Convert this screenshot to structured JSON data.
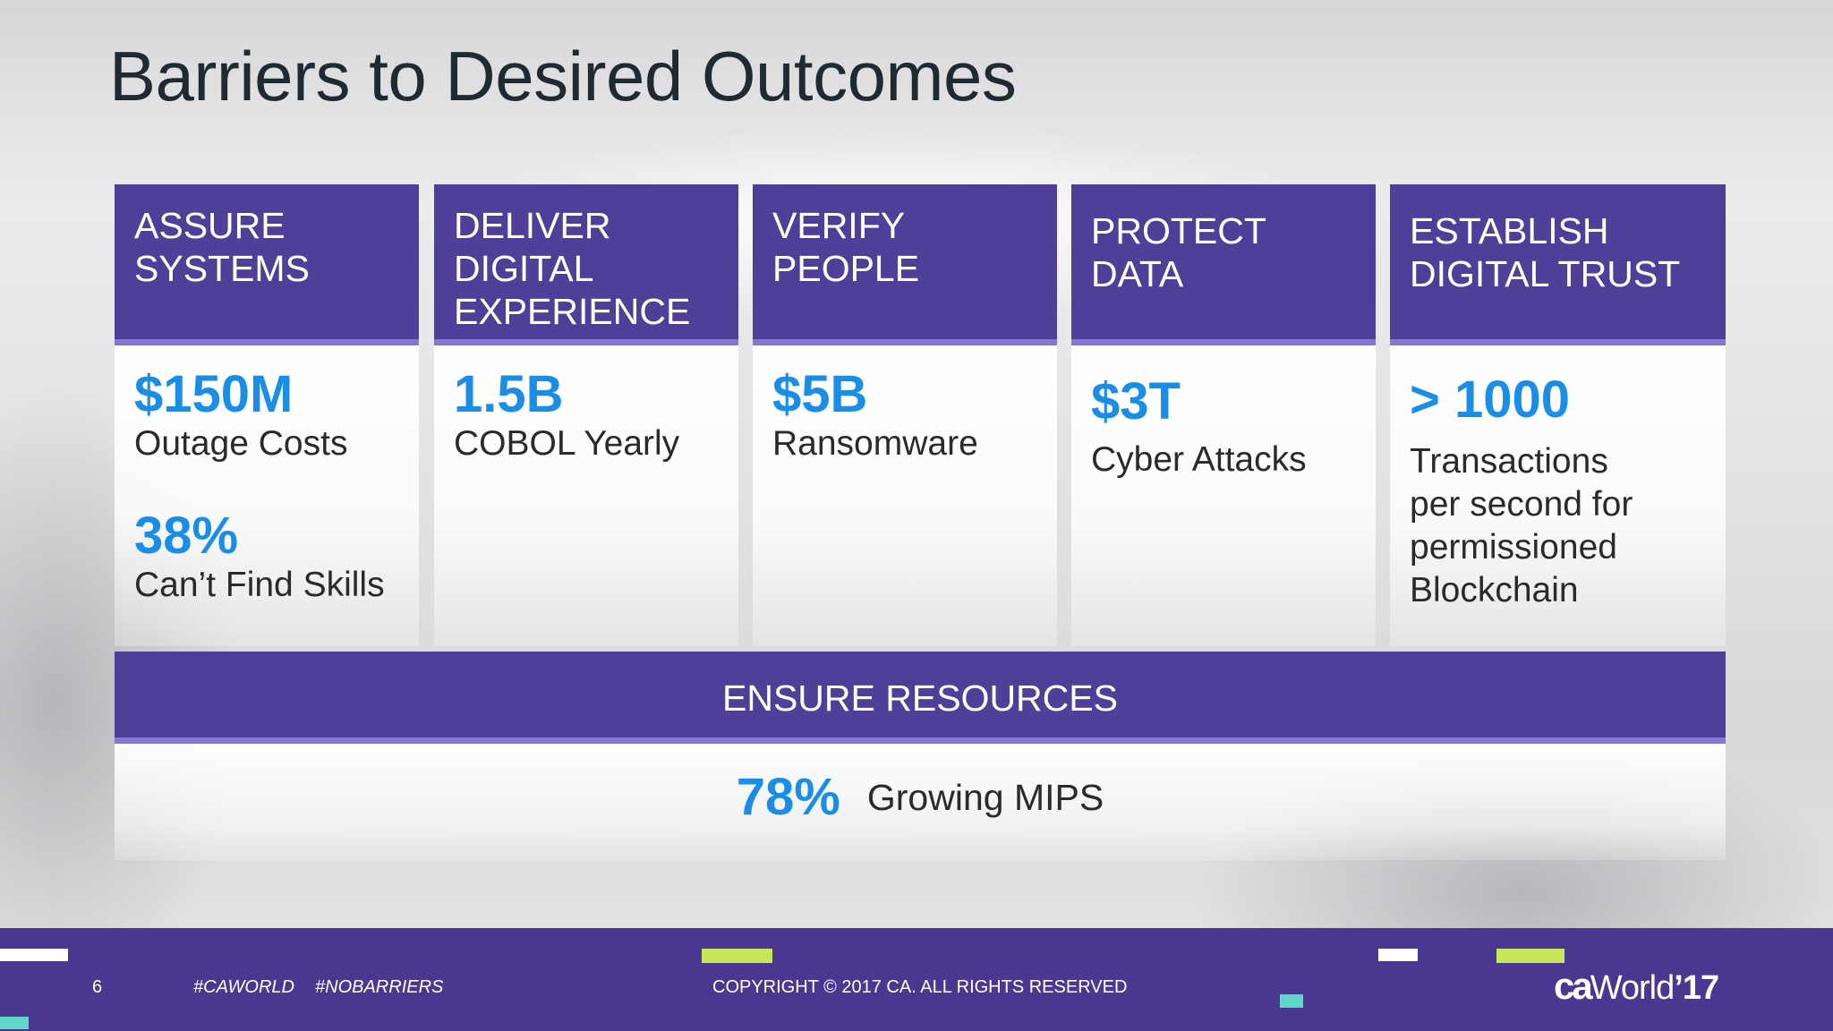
{
  "title": "Barriers to Desired Outcomes",
  "columns": [
    {
      "heading": [
        "ASSURE",
        "SYSTEMS"
      ],
      "stats": [
        {
          "value": "$150M",
          "label": "Outage Costs"
        },
        {
          "value": "38%",
          "label": "Can’t Find Skills"
        }
      ]
    },
    {
      "heading": [
        "DELIVER",
        "DIGITAL",
        "EXPERIENCE"
      ],
      "stats": [
        {
          "value": "1.5B",
          "label": "COBOL Yearly"
        }
      ]
    },
    {
      "heading": [
        "VERIFY",
        "PEOPLE"
      ],
      "stats": [
        {
          "value": "$5B",
          "label": "Ransomware"
        }
      ]
    },
    {
      "heading": [
        "PROTECT",
        "DATA"
      ],
      "stats": [
        {
          "value": "$3T",
          "label": "Cyber Attacks"
        }
      ]
    },
    {
      "heading": [
        "ESTABLISH",
        "DIGITAL TRUST"
      ],
      "stats": [
        {
          "value": "> 1000",
          "label": [
            "Transactions",
            "per second for",
            "permissioned",
            "Blockchain"
          ]
        }
      ]
    }
  ],
  "ensure": {
    "heading": "ENSURE RESOURCES",
    "value": "78%",
    "label": "Growing MIPS"
  },
  "footer": {
    "page_number": "6",
    "tag1": "#CAWORLD",
    "tag2": "#NOBARRIERS",
    "copyright": "COPYRIGHT © 2017 CA. ALL RIGHTS RESERVED",
    "logo_ca": "ca",
    "logo_world": "World",
    "logo_year": "’17"
  },
  "colors": {
    "header_purple": "#4f3f98",
    "header_underline": "#8577cf",
    "footer_purple": "#4a3790",
    "stat_blue": "#1a8ee6",
    "accent_lime": "#c8e65a",
    "accent_teal": "#5fd6c7"
  }
}
